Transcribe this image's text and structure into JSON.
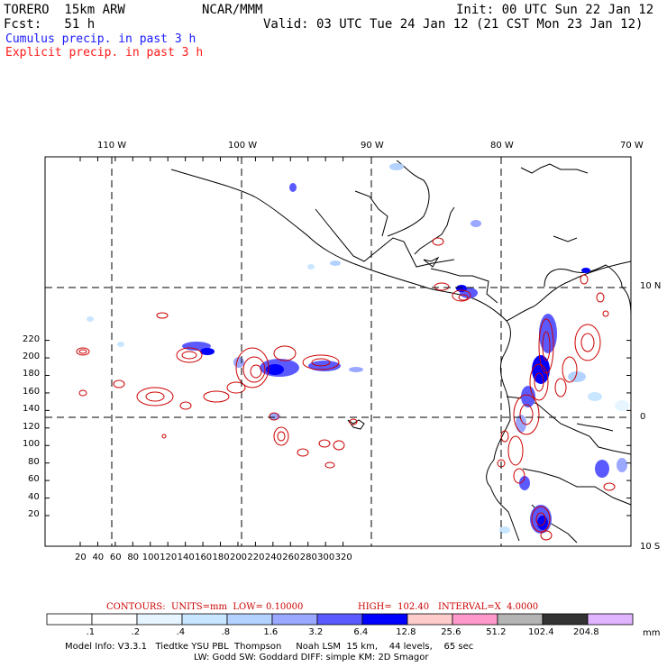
{
  "header": {
    "model": "TORERO  15km ARW",
    "org": "NCAR/MMM",
    "init": "Init: 00 UTC Sun 22 Jan 12",
    "fcst": "Fcst:   51 h",
    "valid": "Valid: 03 UTC Tue 24 Jan 12 (21 CST Mon 23 Jan 12)",
    "line1": "Cumulus precip. in past 3 h",
    "line2": "Explicit precip. in past 3 h",
    "line1_color": "#1a1aff",
    "line2_color": "#ff1a1a"
  },
  "axes": {
    "top": [
      "110 W",
      "100 W",
      "90 W",
      "80 W",
      "70 W"
    ],
    "right": [
      "10 N",
      "0",
      "10 S"
    ],
    "left": [
      "20",
      "40",
      "60",
      "80",
      "100",
      "120",
      "140",
      "160",
      "180",
      "200",
      "220"
    ],
    "bottom": [
      "20",
      "40",
      "60",
      "80",
      "100",
      "120",
      "140",
      "160",
      "180",
      "200",
      "220",
      "240",
      "260",
      "280",
      "300",
      "320"
    ]
  },
  "contours": {
    "units": "CONTOURS:  UNITS=mm  LOW= 0.10000",
    "high": "HIGH=  102.40",
    "interval": "INTERVAL=X  4.0000",
    "color": "#cc0000"
  },
  "colorbar": {
    "labels": [
      ".1",
      ".2",
      ".4",
      ".8",
      "1.6",
      "3.2",
      "6.4",
      "12.8",
      "25.6",
      "51.2",
      "102.4",
      "204.8"
    ],
    "unit": "mm",
    "colors": [
      "#ffffff",
      "#ffffff",
      "#e6f5ff",
      "#c8e6ff",
      "#b4d2ff",
      "#9aa8ff",
      "#5a5aff",
      "#0000ff",
      "#ffcccc",
      "#ff99cc",
      "#b4b4b4",
      "#333333",
      "#e0b4ff"
    ]
  },
  "footer": {
    "line1": "Model Info: V3.3.1   Tiedtke YSU PBL  Thompson     Noah LSM  15 km,    44 levels,    65 sec",
    "line2": "LW: Godd SW: Goddard DIFF: simple KM: 2D Smagor"
  }
}
